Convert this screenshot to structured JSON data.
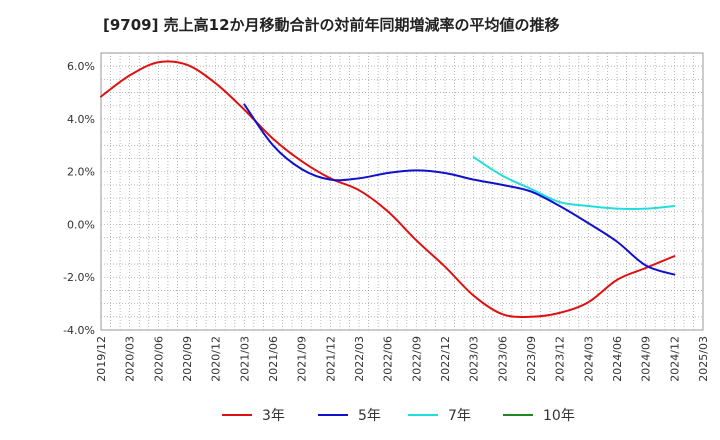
{
  "chart_data": {
    "type": "line",
    "title": "[9709]  売上高12か月移動合計の対前年同期増減率の平均値の推移",
    "xlabel": "",
    "ylabel": "",
    "x_ticks": [
      "2019/12",
      "2020/03",
      "2020/06",
      "2020/09",
      "2020/12",
      "2021/03",
      "2021/06",
      "2021/09",
      "2021/12",
      "2022/03",
      "2022/06",
      "2022/09",
      "2022/12",
      "2023/03",
      "2023/06",
      "2023/09",
      "2023/12",
      "2024/03",
      "2024/06",
      "2024/09",
      "2024/12",
      "2025/03"
    ],
    "y_ticks": [
      "6.0%",
      "4.0%",
      "2.0%",
      "0.0%",
      "-2.0%",
      "-4.0%"
    ],
    "y_tick_values": [
      6,
      4,
      2,
      0,
      -2,
      -4
    ],
    "ylim": [
      -4,
      6.5
    ],
    "grid": true,
    "legend_position": "bottom",
    "series": [
      {
        "name": "3年",
        "color": "#dd1111",
        "points": [
          [
            "2019/12",
            4.85
          ],
          [
            "2020/03",
            5.65
          ],
          [
            "2020/06",
            6.15
          ],
          [
            "2020/09",
            6.05
          ],
          [
            "2020/12",
            5.35
          ],
          [
            "2021/03",
            4.35
          ],
          [
            "2021/06",
            3.25
          ],
          [
            "2021/09",
            2.4
          ],
          [
            "2021/12",
            1.75
          ],
          [
            "2022/03",
            1.3
          ],
          [
            "2022/06",
            0.5
          ],
          [
            "2022/09",
            -0.6
          ],
          [
            "2022/12",
            -1.6
          ],
          [
            "2023/03",
            -2.7
          ],
          [
            "2023/06",
            -3.4
          ],
          [
            "2023/09",
            -3.5
          ],
          [
            "2023/12",
            -3.35
          ],
          [
            "2024/03",
            -2.95
          ],
          [
            "2024/06",
            -2.1
          ],
          [
            "2024/09",
            -1.65
          ],
          [
            "2024/12",
            -1.2
          ]
        ]
      },
      {
        "name": "5年",
        "color": "#1111cc",
        "points": [
          [
            "2021/03",
            4.55
          ],
          [
            "2021/06",
            3.0
          ],
          [
            "2021/09",
            2.1
          ],
          [
            "2021/12",
            1.7
          ],
          [
            "2022/03",
            1.75
          ],
          [
            "2022/06",
            1.95
          ],
          [
            "2022/09",
            2.05
          ],
          [
            "2022/12",
            1.95
          ],
          [
            "2023/03",
            1.7
          ],
          [
            "2023/06",
            1.5
          ],
          [
            "2023/09",
            1.25
          ],
          [
            "2023/12",
            0.7
          ],
          [
            "2024/03",
            0.05
          ],
          [
            "2024/06",
            -0.65
          ],
          [
            "2024/09",
            -1.55
          ],
          [
            "2024/12",
            -1.9
          ]
        ]
      },
      {
        "name": "7年",
        "color": "#22dddd",
        "points": [
          [
            "2023/03",
            2.55
          ],
          [
            "2023/06",
            1.85
          ],
          [
            "2023/09",
            1.35
          ],
          [
            "2023/12",
            0.85
          ],
          [
            "2024/03",
            0.7
          ],
          [
            "2024/06",
            0.6
          ],
          [
            "2024/09",
            0.6
          ],
          [
            "2024/12",
            0.7
          ]
        ]
      },
      {
        "name": "10年",
        "color": "#228822",
        "points": []
      }
    ]
  }
}
